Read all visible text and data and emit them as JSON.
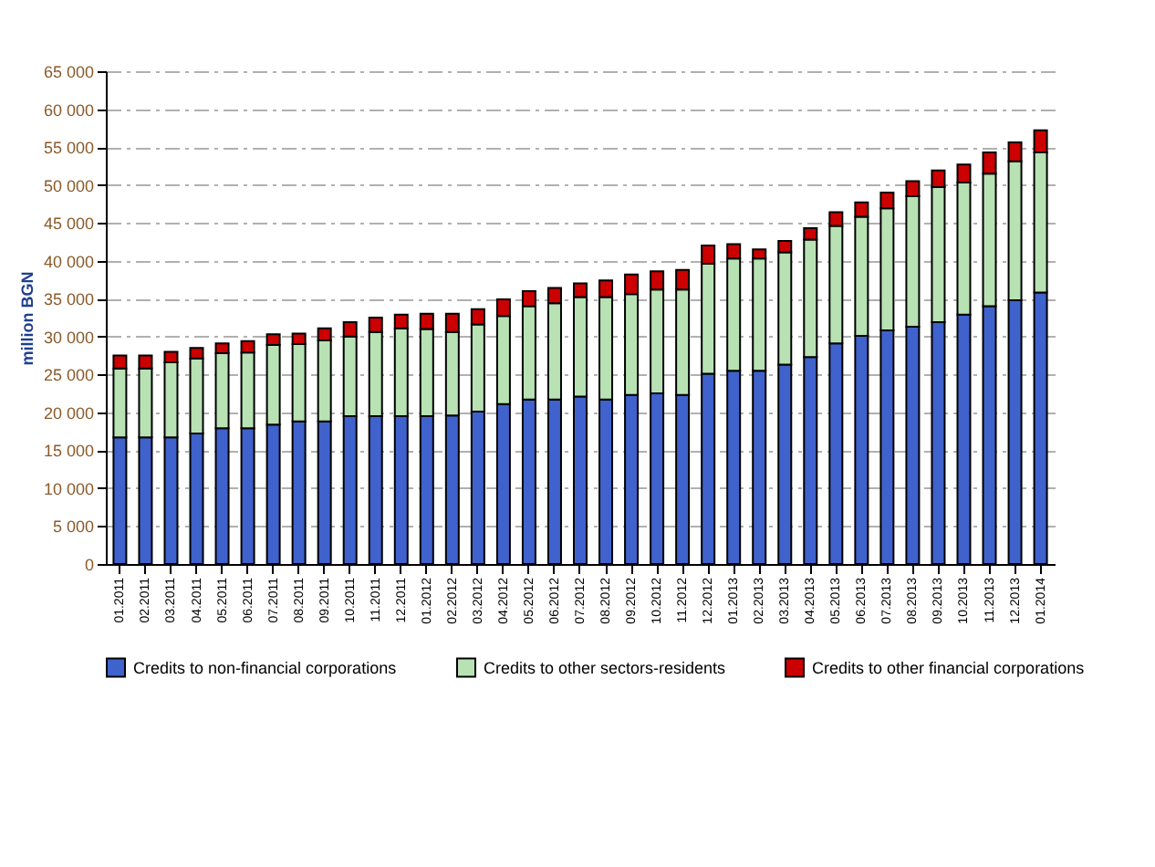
{
  "chart_data": {
    "type": "bar",
    "stacked": true,
    "ylabel": "million BGN",
    "categories": [
      "01.2011",
      "02.2011",
      "03.2011",
      "04.2011",
      "05.2011",
      "06.2011",
      "07.2011",
      "08.2011",
      "09.2011",
      "10.2011",
      "11.2011",
      "12.2011",
      "01.2012",
      "02.2012",
      "03.2012",
      "04.2012",
      "05.2012",
      "06.2012",
      "07.2012",
      "08.2012",
      "09.2012",
      "10.2012",
      "11.2012",
      "12.2012",
      "01.2013",
      "02.2013",
      "03.2013",
      "04.2013",
      "05.2013",
      "06.2013",
      "07.2013",
      "08.2013",
      "09.2013",
      "10.2013",
      "11.2013",
      "12.2013",
      "01.2014"
    ],
    "series": [
      {
        "name": "Credits to non-financial corporations",
        "color": "#3f62cc",
        "values": [
          16700,
          16700,
          16700,
          17200,
          17900,
          17900,
          18400,
          18800,
          18800,
          19500,
          19500,
          19500,
          19500,
          19600,
          20100,
          21100,
          21700,
          21700,
          22100,
          21700,
          22300,
          22500,
          22300,
          25100,
          25500,
          25500,
          26300,
          27300,
          29100,
          30100,
          30800,
          31300,
          31900,
          32900,
          34000,
          34800,
          35800
        ]
      },
      {
        "name": "Credits to other sectors-residents",
        "color": "#b8e2b4",
        "values": [
          9100,
          9100,
          9900,
          9900,
          9900,
          10000,
          10500,
          10200,
          10700,
          10500,
          11100,
          11600,
          11500,
          11000,
          11500,
          11600,
          12300,
          12700,
          13100,
          13500,
          13300,
          13700,
          13900,
          14500,
          14800,
          14800,
          14800,
          15500,
          15500,
          15700,
          16100,
          17200,
          17800,
          17400,
          17500,
          18300,
          18500
        ]
      },
      {
        "name": "Credits to other financial corporations",
        "color": "#cc0000",
        "values": [
          1700,
          1700,
          1400,
          1400,
          1300,
          1500,
          1400,
          1400,
          1600,
          1900,
          1900,
          1800,
          2000,
          2400,
          2000,
          2200,
          2000,
          2000,
          1800,
          2200,
          2600,
          2400,
          2600,
          2400,
          1900,
          1200,
          1500,
          1500,
          1800,
          1900,
          2100,
          2000,
          2200,
          2400,
          2800,
          2500,
          2900
        ]
      }
    ],
    "ylim": [
      0,
      65000
    ],
    "yticks": [
      {
        "value": 0,
        "label": "0"
      },
      {
        "value": 5000,
        "label": "5 000"
      },
      {
        "value": 10000,
        "label": "10 000"
      },
      {
        "value": 15000,
        "label": "15 000"
      },
      {
        "value": 20000,
        "label": "20 000"
      },
      {
        "value": 25000,
        "label": "25 000"
      },
      {
        "value": 30000,
        "label": "30 000"
      },
      {
        "value": 35000,
        "label": "35 000"
      },
      {
        "value": 40000,
        "label": "40 000"
      },
      {
        "value": 45000,
        "label": "45 000"
      },
      {
        "value": 50000,
        "label": "50 000"
      },
      {
        "value": 55000,
        "label": "55 000"
      },
      {
        "value": 60000,
        "label": "60 000"
      },
      {
        "value": 65000,
        "label": "65 000"
      }
    ],
    "grid": "y",
    "legend": "bottom"
  }
}
